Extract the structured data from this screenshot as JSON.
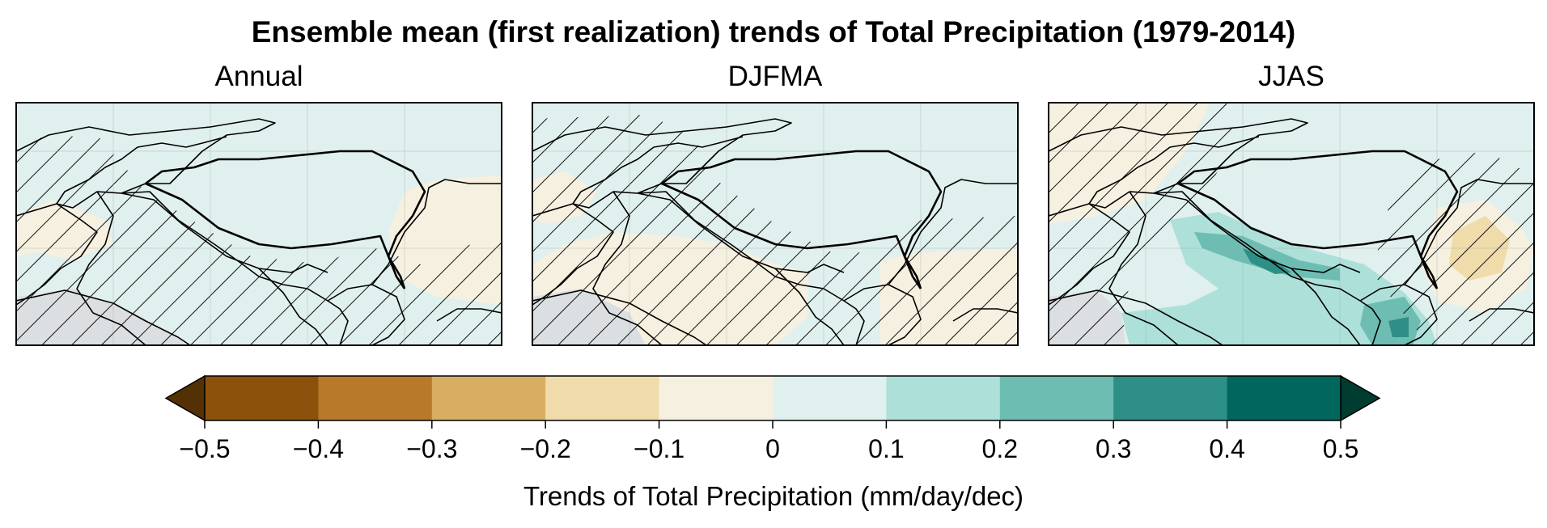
{
  "figure": {
    "title": "Ensemble mean (first realization) trends of Total Precipitation (1979-2014)"
  },
  "panels": [
    {
      "title": "Annual"
    },
    {
      "title": "DJFMA"
    },
    {
      "title": "JJAS"
    }
  ],
  "colorbar": {
    "label": "Trends of Total Precipitation (mm/day/dec)",
    "ticks": [
      "−0.5",
      "−0.4",
      "−0.3",
      "−0.2",
      "−0.1",
      "0",
      "0.1",
      "0.2",
      "0.3",
      "0.4",
      "0.5"
    ],
    "levels": [
      -0.5,
      -0.4,
      -0.3,
      -0.2,
      -0.1,
      0,
      0.1,
      0.2,
      0.3,
      0.4,
      0.5
    ],
    "colors": [
      "#8c510a",
      "#b87a2a",
      "#d8af62",
      "#f0dcab",
      "#f6f0e0",
      "#e0f0ee",
      "#ade0d9",
      "#6dbdb3",
      "#2e8f87",
      "#01665e"
    ],
    "under_color": "#543005",
    "over_color": "#003c30",
    "ocean_color": "#dcdfe2",
    "hatch_meaning": "hatched"
  }
}
